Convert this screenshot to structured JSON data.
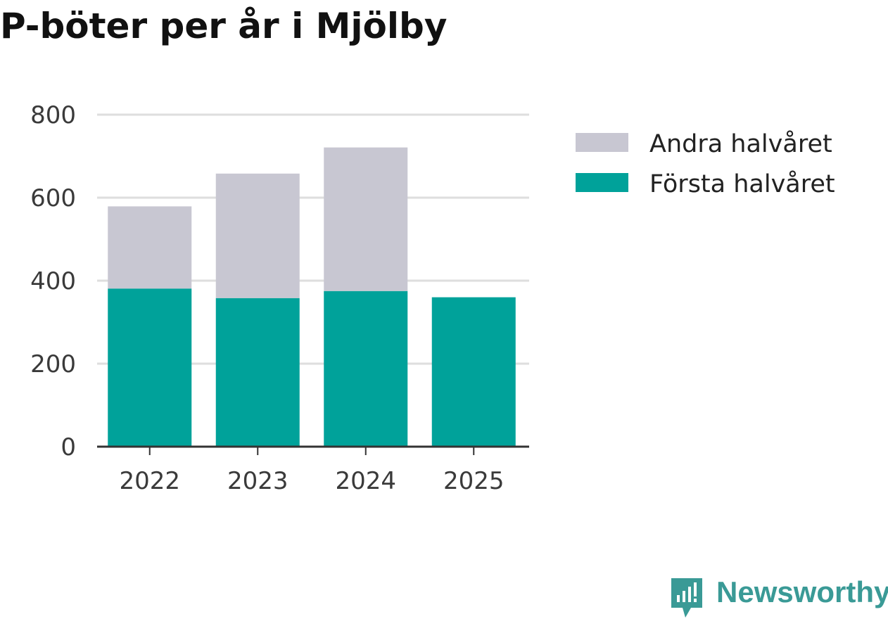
{
  "title": "P-böter per år i Mjölby",
  "brand": {
    "name": "Newsworthy",
    "icon": "newsworthy-logo-icon",
    "color": "#3a9a96"
  },
  "chart_data": {
    "type": "bar",
    "stacked": true,
    "title": "P-böter per år i Mjölby",
    "xlabel": "",
    "ylabel": "",
    "categories": [
      "2022",
      "2023",
      "2024",
      "2025"
    ],
    "series": [
      {
        "name": "Första halvåret",
        "color": "#00a29a",
        "values": [
          381,
          358,
          375,
          360
        ]
      },
      {
        "name": "Andra halvåret",
        "color": "#c8c7d2",
        "values": [
          198,
          300,
          346,
          0
        ]
      }
    ],
    "legend_order": [
      "Andra halvåret",
      "Första halvåret"
    ],
    "legend_position": "right",
    "ylim": [
      0,
      800
    ],
    "yticks": [
      0,
      200,
      400,
      600,
      800
    ],
    "grid": true
  }
}
